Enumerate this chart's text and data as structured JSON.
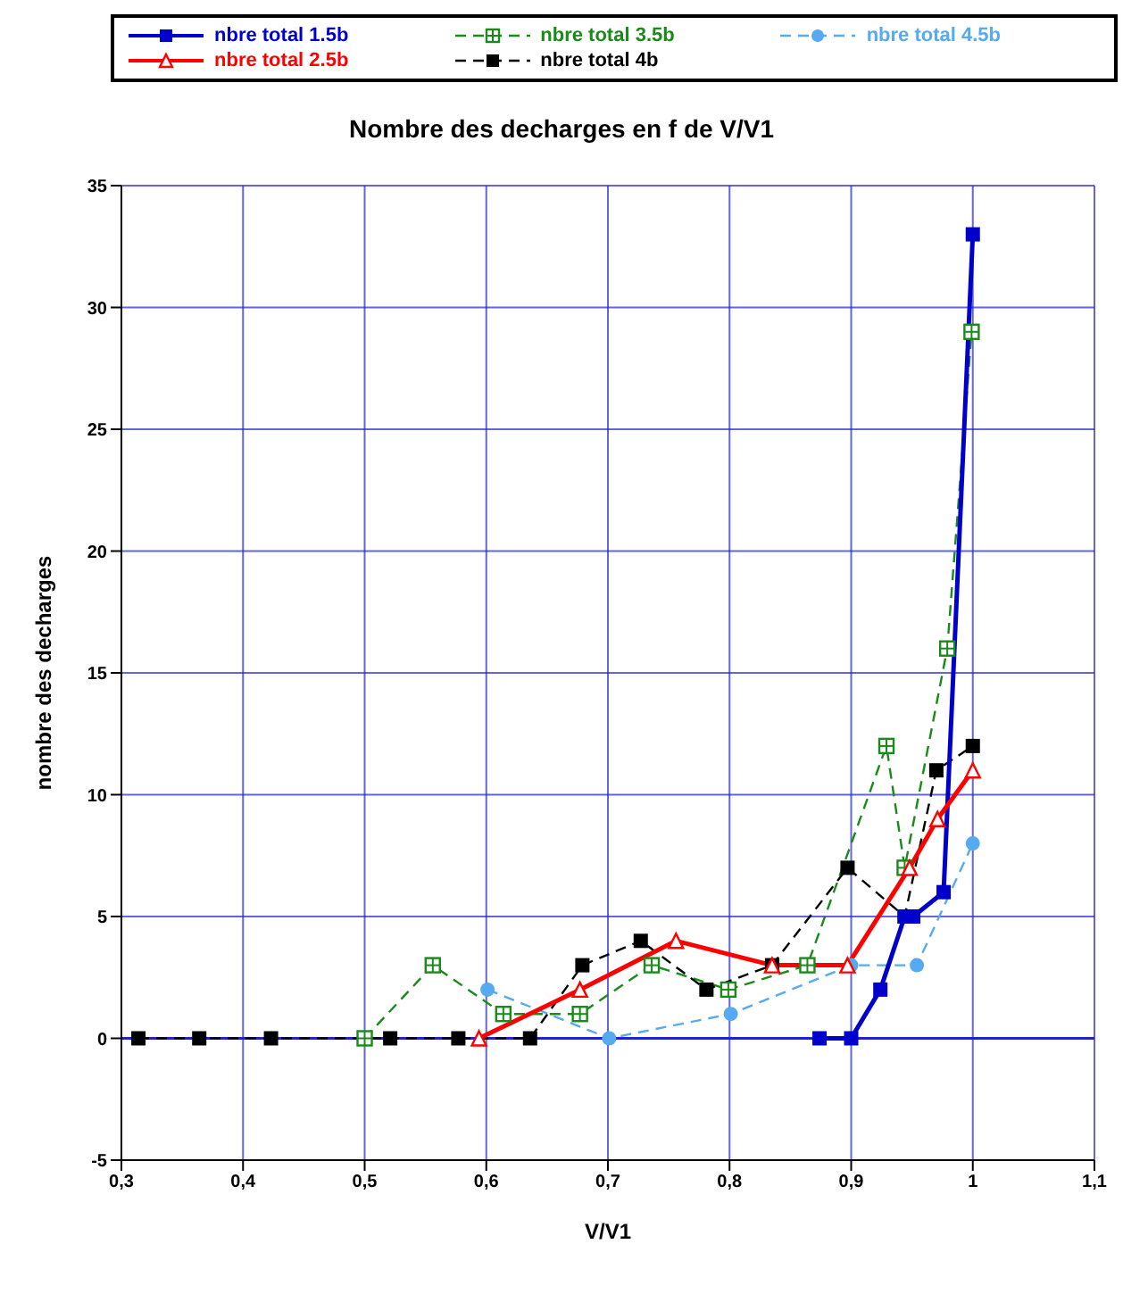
{
  "chart_data": {
    "type": "line",
    "title": "Nombre des decharges en f de V/V1",
    "xlabel": "V/V1",
    "ylabel": "nombre des decharges",
    "xlim": [
      0.3,
      1.1
    ],
    "xticks": [
      {
        "value": 0.3,
        "label": "0,3"
      },
      {
        "value": 0.4,
        "label": "0,4"
      },
      {
        "value": 0.5,
        "label": "0,5"
      },
      {
        "value": 0.6,
        "label": "0,6"
      },
      {
        "value": 0.7,
        "label": "0,7"
      },
      {
        "value": 0.8,
        "label": "0,8"
      },
      {
        "value": 0.9,
        "label": "0,9"
      },
      {
        "value": 1,
        "label": "1"
      },
      {
        "value": 1.1,
        "label": "1,1"
      }
    ],
    "ylim": [
      -5,
      35
    ],
    "yticks": [
      -5,
      0,
      5,
      10,
      15,
      20,
      25,
      30,
      35
    ],
    "grid": true,
    "legend": "top",
    "ref_lines": [
      {
        "axis": "y",
        "value": 0,
        "color": "#2222cc"
      }
    ],
    "series": [
      {
        "name": "nbre total 1.5b",
        "color": "#0000cc",
        "marker": "square",
        "line_style": "solid",
        "x": [
          0.874,
          0.9,
          0.924,
          0.944,
          0.951,
          0.976,
          1.0
        ],
        "values": [
          0,
          0,
          2,
          5,
          5,
          6,
          33
        ]
      },
      {
        "name": "nbre total 2.5b",
        "color": "#ff0000",
        "marker": "triangle",
        "line_style": "solid",
        "x": [
          0.594,
          0.677,
          0.756,
          0.835,
          0.897,
          0.948,
          0.971,
          1.0
        ],
        "values": [
          0,
          2,
          4,
          3,
          3,
          7,
          9,
          11
        ]
      },
      {
        "name": "nbre total 3.5b",
        "color": "#1a8a1a",
        "marker": "square",
        "line_style": "dashed",
        "x": [
          0.5,
          0.556,
          0.614,
          0.677,
          0.736,
          0.799,
          0.864,
          0.929,
          0.944,
          0.979,
          0.999
        ],
        "values": [
          0,
          3,
          1,
          1,
          3,
          2,
          3,
          12,
          7,
          16,
          29
        ]
      },
      {
        "name": "nbre total 4b",
        "color": "#000000",
        "marker": "square",
        "line_style": "dashed",
        "x": [
          0.314,
          0.364,
          0.423,
          0.521,
          0.577,
          0.636,
          0.679,
          0.727,
          0.781,
          0.835,
          0.897,
          0.944,
          0.97,
          1.0
        ],
        "values": [
          0,
          0,
          0,
          0,
          0,
          0,
          3,
          4,
          2,
          3,
          7,
          5,
          11,
          12
        ]
      },
      {
        "name": "nbre total 4.5b",
        "color": "#55aaf0",
        "marker": "circle",
        "line_style": "dashed",
        "x": [
          0.601,
          0.701,
          0.801,
          0.9,
          0.954,
          1.0
        ],
        "values": [
          2,
          0,
          1,
          3,
          3,
          8
        ]
      }
    ]
  }
}
